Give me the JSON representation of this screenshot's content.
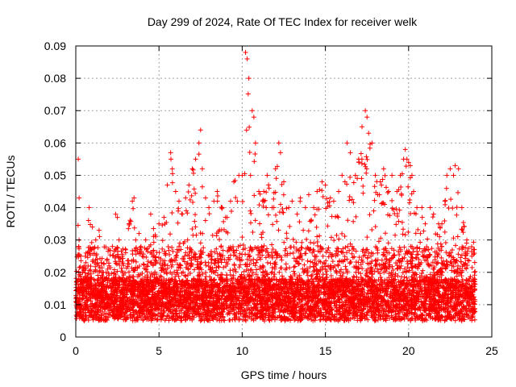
{
  "chart_data": {
    "type": "scatter",
    "title": "Day 299 of 2024, Rate Of TEC Index for receiver welk",
    "xlabel": "GPS time / hours",
    "ylabel": "ROTI / TECUs",
    "xlim": [
      0,
      25
    ],
    "ylim": [
      0,
      0.09
    ],
    "x_ticks": [
      0,
      5,
      10,
      15,
      20,
      25
    ],
    "x_tick_labels": [
      "0",
      "5",
      "10",
      "15",
      "20",
      "25"
    ],
    "y_ticks": [
      0,
      0.01,
      0.02,
      0.03,
      0.04,
      0.05,
      0.06,
      0.07,
      0.08,
      0.09
    ],
    "y_tick_labels": [
      "0",
      "0.01",
      "0.02",
      "0.03",
      "0.04",
      "0.05",
      "0.06",
      "0.07",
      "0.08",
      "0.09"
    ],
    "grid": true,
    "marker": "plus",
    "color": "#ff0000",
    "series": [
      {
        "x": [
          0.05,
          0.15,
          0.2,
          0.3,
          0.4,
          0.5,
          0.6,
          0.8,
          1.0,
          1.2,
          1.4,
          1.6,
          1.8,
          2.0,
          2.2,
          2.4,
          2.5,
          2.6,
          2.8,
          3.0,
          3.2,
          3.4,
          3.5,
          3.6,
          3.8,
          4.0,
          4.2,
          4.5,
          4.8,
          5.0,
          5.3,
          5.5,
          5.7,
          5.8,
          6.0,
          6.2,
          6.4,
          6.6,
          6.8,
          7.0,
          7.2,
          7.4,
          7.5,
          7.6,
          7.8,
          8.0,
          8.3,
          8.5,
          8.8,
          9.0,
          9.3,
          9.5,
          9.8,
          10.0,
          10.2,
          10.3,
          10.4,
          10.5,
          10.6,
          10.7,
          10.8,
          11.0,
          11.3,
          11.5,
          11.8,
          12.0,
          12.2,
          12.3,
          12.5,
          12.8,
          13.0,
          13.3,
          13.5,
          13.8,
          14.0,
          14.3,
          14.5,
          14.8,
          15.0,
          15.3,
          15.5,
          15.8,
          16.0,
          16.3,
          16.5,
          16.8,
          17.0,
          17.2,
          17.4,
          17.5,
          17.6,
          17.8,
          18.0,
          18.3,
          18.5,
          18.8,
          19.0,
          19.3,
          19.5,
          19.7,
          19.8,
          19.9,
          20.0,
          20.1,
          20.2,
          20.3,
          20.5,
          20.8,
          21.0,
          21.3,
          21.5,
          21.8,
          22.0,
          22.3,
          22.5,
          22.7,
          22.8,
          23.0,
          23.2,
          23.5,
          23.8,
          23.9
        ],
        "y": [
          0.012,
          0.055,
          0.043,
          0.025,
          0.02,
          0.022,
          0.018,
          0.04,
          0.034,
          0.03,
          0.033,
          0.02,
          0.018,
          0.022,
          0.028,
          0.038,
          0.037,
          0.03,
          0.025,
          0.027,
          0.035,
          0.042,
          0.043,
          0.03,
          0.032,
          0.025,
          0.03,
          0.038,
          0.031,
          0.035,
          0.037,
          0.047,
          0.057,
          0.052,
          0.045,
          0.042,
          0.038,
          0.043,
          0.047,
          0.052,
          0.055,
          0.06,
          0.064,
          0.052,
          0.043,
          0.04,
          0.042,
          0.045,
          0.04,
          0.037,
          0.042,
          0.048,
          0.05,
          0.05,
          0.088,
          0.086,
          0.08,
          0.05,
          0.07,
          0.068,
          0.06,
          0.045,
          0.045,
          0.05,
          0.04,
          0.052,
          0.06,
          0.057,
          0.048,
          0.04,
          0.042,
          0.038,
          0.043,
          0.04,
          0.044,
          0.04,
          0.045,
          0.048,
          0.047,
          0.043,
          0.042,
          0.045,
          0.05,
          0.06,
          0.057,
          0.05,
          0.055,
          0.065,
          0.07,
          0.068,
          0.063,
          0.06,
          0.05,
          0.048,
          0.052,
          0.045,
          0.05,
          0.045,
          0.05,
          0.055,
          0.058,
          0.055,
          0.054,
          0.053,
          0.05,
          0.045,
          0.04,
          0.04,
          0.035,
          0.04,
          0.038,
          0.035,
          0.035,
          0.05,
          0.052,
          0.05,
          0.053,
          0.052,
          0.04,
          0.03,
          0.025,
          0.027
        ]
      }
    ]
  }
}
